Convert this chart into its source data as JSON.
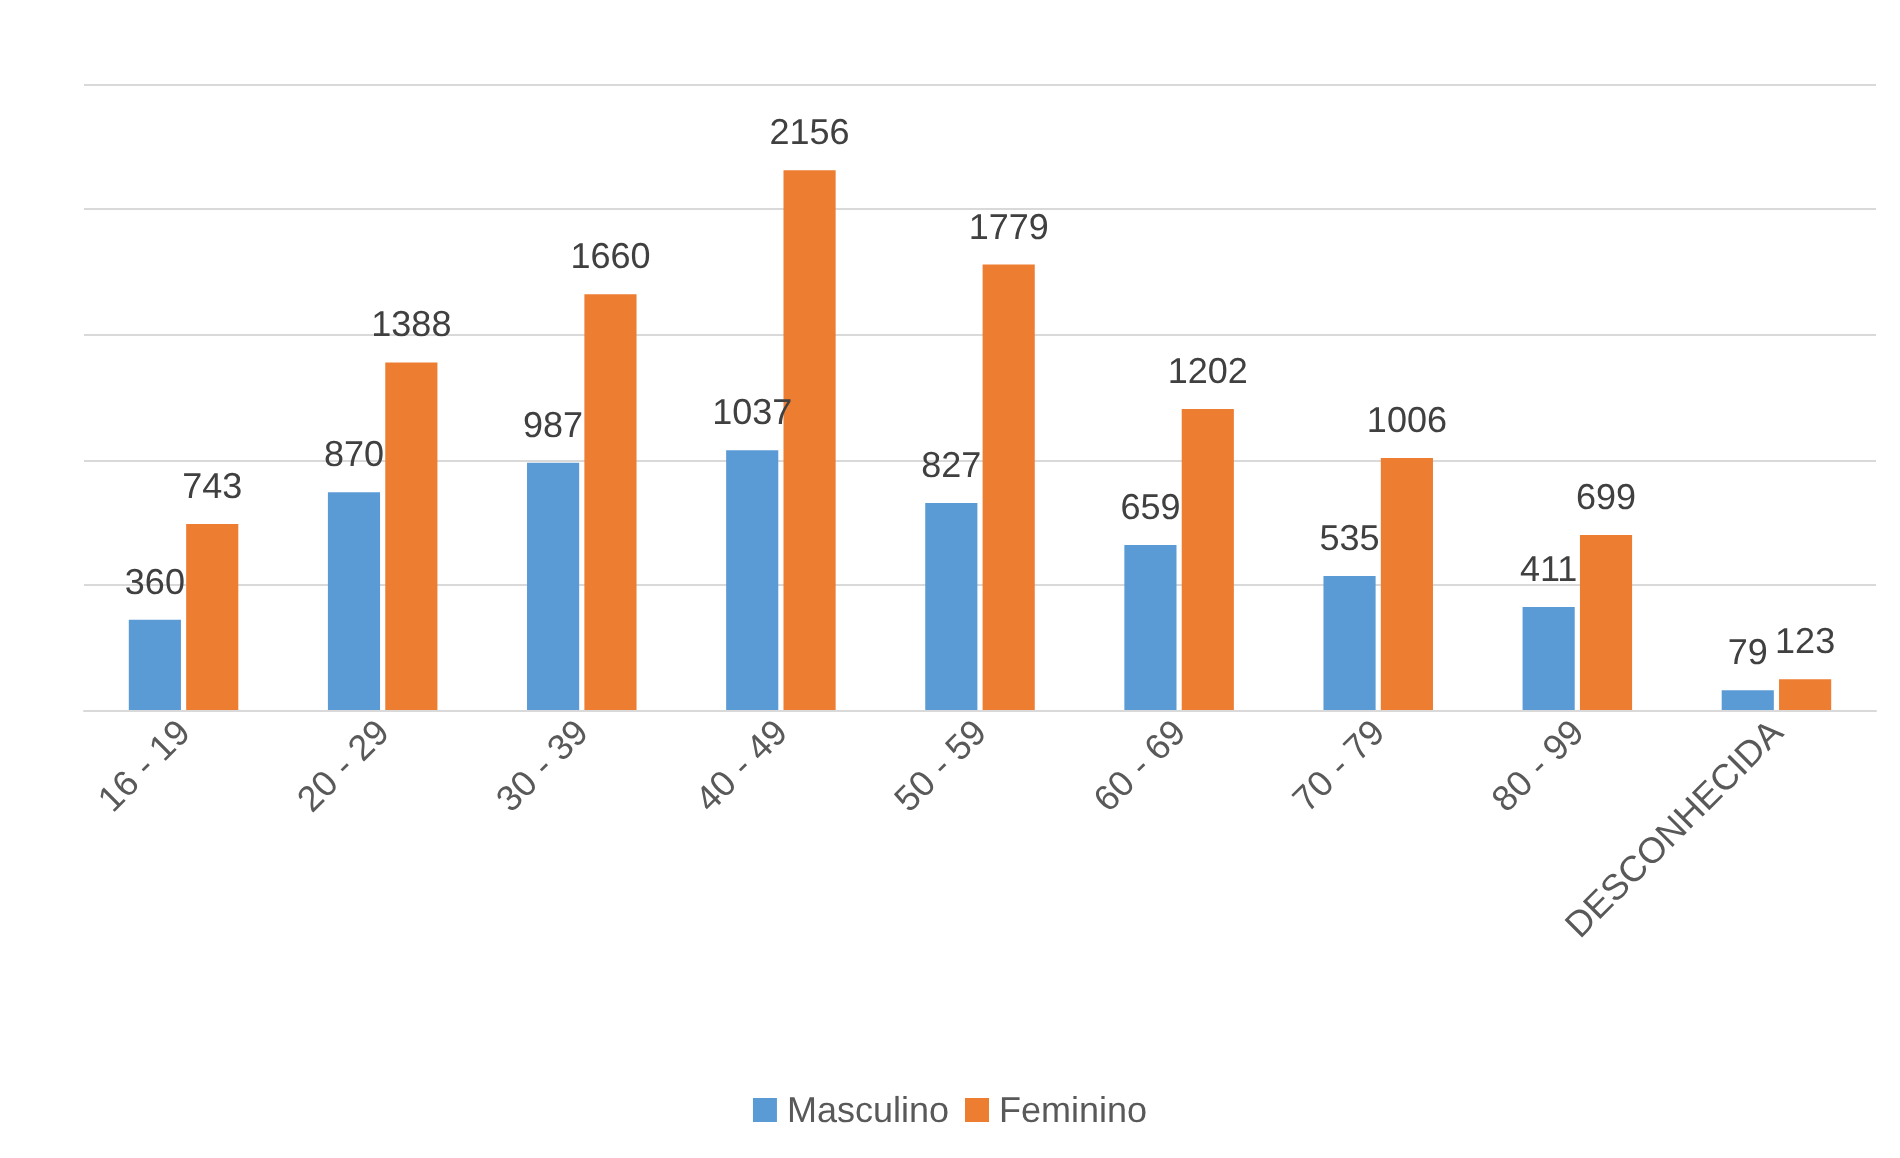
{
  "chart_data": {
    "type": "bar",
    "categories": [
      "16 - 19",
      "20 - 29",
      "30 - 39",
      "40 - 49",
      "50 - 59",
      "60 - 69",
      "70 - 79",
      "80 - 99",
      "DESCONHECIDA"
    ],
    "series": [
      {
        "name": "Masculino",
        "color": "#5b9bd5",
        "values": [
          360,
          870,
          987,
          1037,
          827,
          659,
          535,
          411,
          79
        ]
      },
      {
        "name": "Feminino",
        "color": "#ed7d31",
        "values": [
          743,
          1388,
          1660,
          2156,
          1779,
          1202,
          1006,
          699,
          123
        ]
      }
    ],
    "ylim": [
      0,
      2500
    ],
    "yticks": [
      {
        "value": 0,
        "label": null
      },
      {
        "value": 500,
        "label": null
      },
      {
        "value": 1000,
        "label": null
      },
      {
        "value": 1500,
        "label": null
      },
      {
        "value": 2000,
        "label": null
      },
      {
        "value": 2500,
        "label": null
      }
    ],
    "tick_labels": "x",
    "grid": "y",
    "legend": "bottom",
    "data_labels": true
  }
}
